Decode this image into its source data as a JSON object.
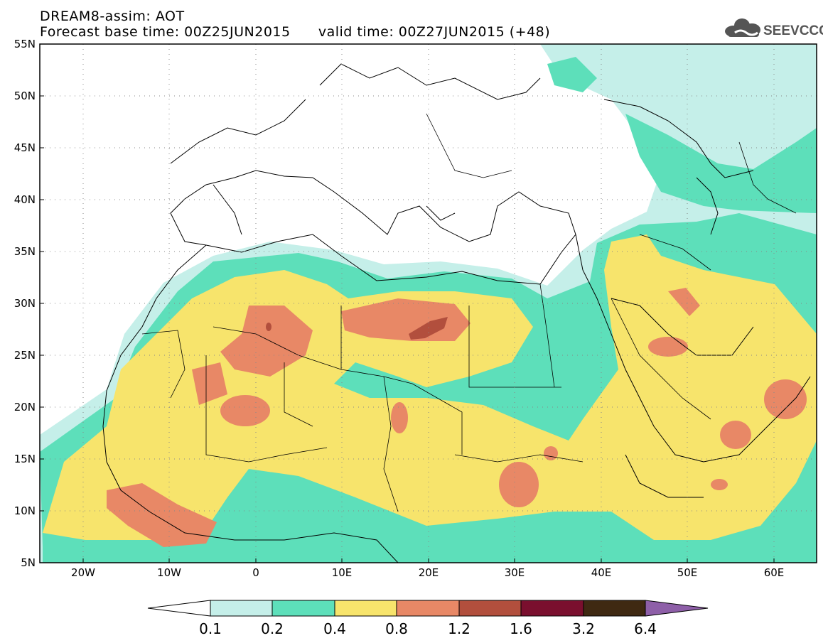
{
  "header": {
    "title_line1": "DREAM8-assim: AOT",
    "base_time_label": "Forecast base time: 00Z25JUN2015",
    "valid_time_label": "valid time: 00Z27JUN2015 (+48)"
  },
  "logo": {
    "text": "SEEVCCC",
    "icon": "cloud-icon"
  },
  "map": {
    "lon_range": [
      -25,
      65
    ],
    "lat_range": [
      5,
      55
    ],
    "grid": "dotted",
    "lat_ticks": [
      "55N",
      "50N",
      "45N",
      "40N",
      "35N",
      "30N",
      "25N",
      "20N",
      "15N",
      "10N",
      "5N"
    ],
    "lon_ticks": [
      "20W",
      "10W",
      "0",
      "10E",
      "20E",
      "30E",
      "40E",
      "50E",
      "60E"
    ]
  },
  "legend": {
    "levels": [
      "0.1",
      "0.2",
      "0.4",
      "0.8",
      "1.2",
      "1.6",
      "3.2",
      "6.4"
    ],
    "colors": [
      "#ffffff",
      "#c5efe9",
      "#5ddfba",
      "#f7e46c",
      "#e88866",
      "#b24f3d",
      "#7a0f2e",
      "#3f2912",
      "#8e5fa8"
    ]
  }
}
